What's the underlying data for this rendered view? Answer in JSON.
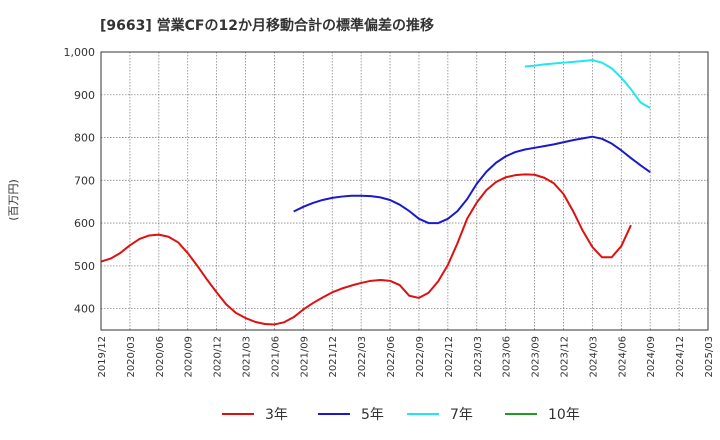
{
  "chart_data": {
    "type": "line",
    "title": "[9663]  営業CFの12か月移動合計の標準偏差の推移",
    "ylabel": "(百万円)",
    "xlabel": "",
    "ylim": [
      350,
      1000
    ],
    "yticks": [
      400,
      500,
      600,
      700,
      800,
      900,
      1000
    ],
    "ytick_labels": [
      "400",
      "500",
      "600",
      "700",
      "800",
      "900",
      "1,000"
    ],
    "xrange": [
      "2019-12",
      "2025-03"
    ],
    "xticks": [
      "2019/12",
      "2020/03",
      "2020/06",
      "2020/09",
      "2020/12",
      "2021/03",
      "2021/06",
      "2021/09",
      "2021/12",
      "2022/03",
      "2022/06",
      "2022/09",
      "2022/12",
      "2023/03",
      "2023/06",
      "2023/09",
      "2023/12",
      "2024/03",
      "2024/06",
      "2024/09",
      "2024/12",
      "2025/03"
    ],
    "grid": true,
    "legend_position": "bottom",
    "series": [
      {
        "name": "3年",
        "color": "#dd1111",
        "start": "2019-12",
        "values": [
          510,
          517,
          530,
          548,
          563,
          571,
          573,
          568,
          555,
          530,
          500,
          468,
          438,
          410,
          390,
          378,
          369,
          364,
          363,
          368,
          380,
          398,
          413,
          426,
          438,
          447,
          454,
          460,
          465,
          467,
          465,
          455,
          430,
          425,
          437,
          464,
          502,
          553,
          610,
          648,
          677,
          696,
          707,
          712,
          714,
          713,
          706,
          693,
          668,
          628,
          582,
          544,
          520,
          520,
          546,
          595
        ]
      },
      {
        "name": "5年",
        "color": "#1a1acc",
        "start": "2021-08",
        "values": [
          627,
          638,
          647,
          654,
          659,
          662,
          664,
          664,
          663,
          660,
          654,
          643,
          628,
          610,
          600,
          600,
          610,
          628,
          656,
          692,
          720,
          741,
          756,
          766,
          772,
          776,
          780,
          784,
          789,
          794,
          798,
          802,
          797,
          786,
          770,
          752,
          735,
          719
        ]
      },
      {
        "name": "7年",
        "color": "#22e5ee",
        "start": "2023-08",
        "values": [
          966,
          968,
          971,
          973,
          975,
          977,
          979,
          981,
          975,
          962,
          940,
          913,
          882,
          869
        ]
      },
      {
        "name": "10年",
        "color": "#229922",
        "start": null,
        "values": []
      }
    ]
  }
}
